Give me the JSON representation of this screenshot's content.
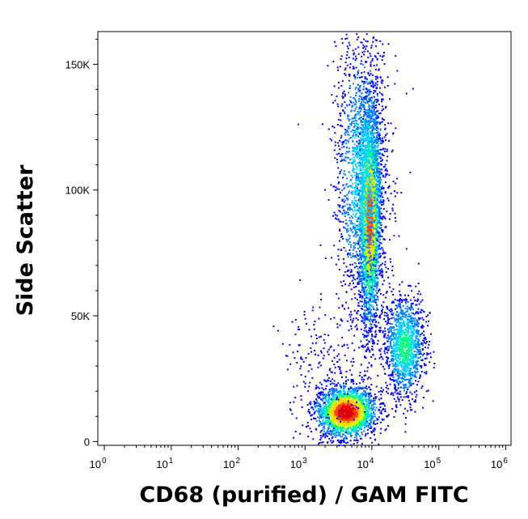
{
  "chart_data": {
    "type": "scatter",
    "subtype": "flow-cytometry density dot plot",
    "xlabel": "CD68 (purified) / GAM FITC",
    "ylabel": "Side Scatter",
    "x_scale": "log",
    "x_ticks": [
      {
        "base": "10",
        "exp": "0",
        "value": 1
      },
      {
        "base": "10",
        "exp": "1",
        "value": 10
      },
      {
        "base": "10",
        "exp": "2",
        "value": 100
      },
      {
        "base": "10",
        "exp": "3",
        "value": 1000
      },
      {
        "base": "10",
        "exp": "4",
        "value": 10000
      },
      {
        "base": "10",
        "exp": "5",
        "value": 100000
      },
      {
        "base": "10",
        "exp": "6",
        "value": 1000000
      }
    ],
    "y_ticks": [
      {
        "label": "0",
        "value": 0
      },
      {
        "label": "50K",
        "value": 50000
      },
      {
        "label": "100K",
        "value": 100000
      },
      {
        "label": "150K",
        "value": 150000
      }
    ],
    "xlim": [
      0.8,
      1200000
    ],
    "ylim": [
      -1500,
      163000
    ],
    "colormap": [
      "#0000ff",
      "#0080ff",
      "#00d4ff",
      "#00ff80",
      "#c8ff00",
      "#ffd000",
      "#ff4000",
      "#e00000"
    ],
    "populations": [
      {
        "name": "",
        "x_center": 4000,
        "y_center": 12000,
        "x_spread_log": 0.22,
        "y_spread": 5000,
        "angle": 0.1,
        "count": 2200,
        "peak_density": 1.0
      },
      {
        "name": "",
        "x_center": 9000,
        "y_center": 90000,
        "x_spread_log": 0.08,
        "y_spread": 22000,
        "angle": 0.002,
        "count": 3000,
        "peak_density": 0.85
      },
      {
        "name": "",
        "x_center": 7000,
        "y_center": 105000,
        "x_spread_log": 0.2,
        "y_spread": 28000,
        "angle": 0.0,
        "count": 1800,
        "peak_density": 0.35
      },
      {
        "name": "",
        "x_center": 30000,
        "y_center": 38000,
        "x_spread_log": 0.15,
        "y_spread": 10000,
        "angle": 0.0,
        "count": 1300,
        "peak_density": 0.45
      },
      {
        "name": "",
        "x_center": 2000,
        "y_center": 30000,
        "x_spread_log": 0.35,
        "y_spread": 14000,
        "angle": 0.0,
        "count": 220,
        "peak_density": 0.05
      }
    ],
    "grid": false
  }
}
